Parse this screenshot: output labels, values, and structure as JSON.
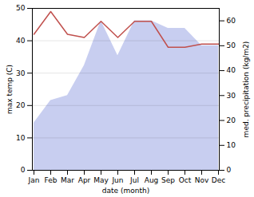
{
  "chart_data": {
    "type": "line",
    "xlabel": "date (month)",
    "ylabel": "max temp (C)",
    "y2label": "med. precipitation (kg/m2)",
    "categories": [
      "Jan",
      "Feb",
      "Mar",
      "Apr",
      "May",
      "Jun",
      "Jul",
      "Aug",
      "Sep",
      "Oct",
      "Nov",
      "Dec"
    ],
    "series": [
      {
        "type": "area",
        "axis": "y2",
        "color": "#aab4e8",
        "values": [
          19,
          28,
          30,
          42,
          60,
          46,
          60,
          60,
          57,
          57,
          50,
          50
        ]
      },
      {
        "type": "line",
        "color": "#c0504d",
        "values": [
          42,
          49,
          42,
          41,
          46,
          41,
          46,
          46,
          38,
          38,
          39,
          39
        ]
      }
    ],
    "ylim": [
      0,
      50
    ],
    "yticks": [
      0,
      10,
      20,
      30,
      40,
      50
    ],
    "y2lim": [
      0,
      65
    ],
    "y2ticks": [
      0,
      10,
      20,
      30,
      40,
      50,
      60
    ],
    "grid": true
  }
}
